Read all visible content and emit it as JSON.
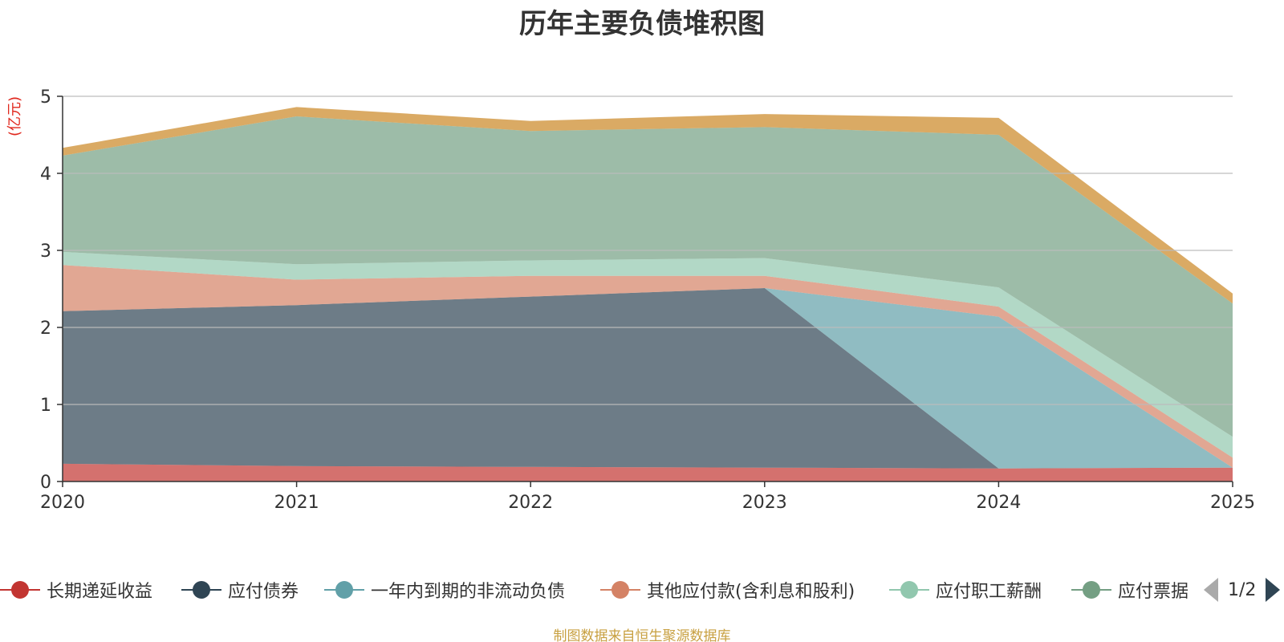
{
  "chart_data": {
    "type": "area",
    "stacked": true,
    "title": "历年主要负债堆积图",
    "ylabel": "(亿元)",
    "xlabel": "",
    "categories": [
      "2020",
      "2021",
      "2022",
      "2023",
      "2024",
      "2025"
    ],
    "ylim": [
      0,
      5
    ],
    "yticks": [
      0,
      1,
      2,
      3,
      4,
      5
    ],
    "grid": true,
    "series": [
      {
        "name": "长期递延收益",
        "color": "#c23531",
        "values": [
          0.23,
          0.2,
          0.19,
          0.18,
          0.17,
          0.18
        ]
      },
      {
        "name": "应付债券",
        "color": "#2f4554",
        "values": [
          1.98,
          2.09,
          2.21,
          2.33,
          0,
          0
        ]
      },
      {
        "name": "一年内到期的非流动负债",
        "color": "#61a0a8",
        "values": [
          0,
          0,
          0,
          0,
          1.97,
          0
        ]
      },
      {
        "name": "其他应付款(含利息和股利)",
        "color": "#d48265",
        "values": [
          0.6,
          0.33,
          0.27,
          0.16,
          0.13,
          0.13
        ]
      },
      {
        "name": "应付职工薪酬",
        "color": "#91c7ae",
        "values": [
          0.17,
          0.2,
          0.2,
          0.23,
          0.25,
          0.27
        ]
      },
      {
        "name": "应付票据",
        "color": "#749f83",
        "values": [
          1.25,
          1.92,
          1.68,
          1.7,
          1.98,
          1.73
        ]
      },
      {
        "name": "",
        "color": "#ca8622",
        "values": [
          0.1,
          0.12,
          0.13,
          0.17,
          0.22,
          0.13
        ]
      }
    ],
    "legend": {
      "visible_items": [
        "长期递延收益",
        "应付债券",
        "一年内到期的非流动负债",
        "其他应付款(含利息和股利)",
        "应付职工薪酬",
        "应付票据"
      ],
      "page": "1/2",
      "placement": "bottom"
    },
    "source": "制图数据来自恒生聚源数据库"
  }
}
